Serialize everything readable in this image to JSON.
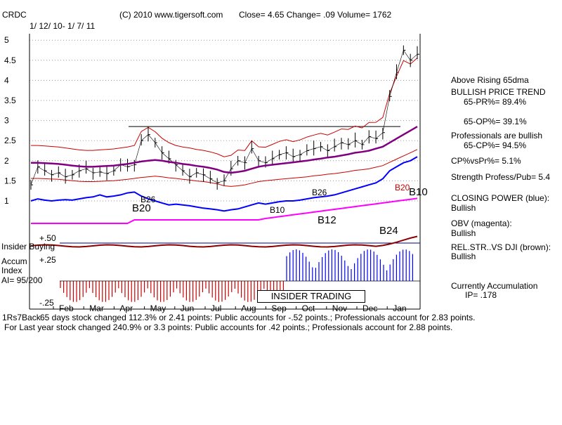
{
  "header": {
    "symbol": "CRDC",
    "copyright": "(C) 2010 www.tigersoft.com",
    "stats": "Close=  4.65  Change= .09 Volume= 1762",
    "date_range": "1/ 12/ 10- 1/ 7/ 11"
  },
  "colors": {
    "price": "#000000",
    "closing_power": "#0000ff",
    "obv": "#ff00ff",
    "rel_strength": "#8b0000",
    "ma65": "#800080",
    "bands": "#cc0000",
    "accum_positive": "#0000ff",
    "accum_negative": "#cc0000",
    "insider_line": "#000080"
  },
  "right_panel": {
    "line1": "Above Rising 65dma",
    "line2": "BULLISH PRICE TREND",
    "line3": "65-PR%= 89.4%",
    "line4": "65-OP%= 39.1%",
    "line5": "Professionals are bullish",
    "line6": "65-CP%= 94.5%",
    "line7": "CP%vsPr%=  5.1%",
    "line8": "Strength Profess/Pub= 5.4",
    "line9": "CLOSING POWER (blue):",
    "line10": "Bullish",
    "line11": "OBV (magenta):",
    "line12": "Bullish",
    "line13": "REL.STR..VS DJI (brown):",
    "line14": "Bullish",
    "line15": "Currently Accumulation",
    "line16": "IP=  .178"
  },
  "left_panel": {
    "insider_buying": "Insider Buying",
    "accum_line1": "Accum",
    "accum_line2": "Index",
    "ai": "AI= 95/200",
    "plus50": "+.50",
    "plus25": "+.25",
    "minus25": "-.25"
  },
  "signals": {
    "b20": "B20",
    "b26a": "B26",
    "b26b": "B26",
    "b12": "B12",
    "b24": "B24",
    "b10": "B10",
    "b20b": "B20",
    "b10b": "B10"
  },
  "insider_label": "INSIDER TRADING",
  "footer": {
    "line1a": "1Rs7Back",
    "line1b": "65 days stock changed  112.3% or  2.41 points:  Public accounts for -.52 points.;  Professionals account for  2.83 points.",
    "line2": "For Last year stock changed  240.9% or  3.3 points:  Public accounts for  .42 points.;  Professionals account for  2.88 points."
  },
  "chart_data": {
    "type": "line",
    "y_ticks": [
      "5",
      "4.5",
      "4",
      "3.5",
      "3",
      "2.5",
      "2",
      "1.5",
      "1"
    ],
    "y_values": [
      5,
      4.5,
      4,
      3.5,
      3,
      2.5,
      2,
      1.5,
      1
    ],
    "x_ticks": [
      "Feb",
      "Mar",
      "Apr",
      "May",
      "Jun",
      "Jul",
      "Aug",
      "Sep",
      "Oct",
      "Nov",
      "Dec",
      "Jan"
    ],
    "ylim": [
      1,
      5
    ],
    "grid": true,
    "price_close": [
      1.4,
      1.85,
      1.75,
      1.65,
      1.7,
      1.6,
      1.65,
      1.75,
      1.8,
      1.7,
      1.72,
      1.68,
      1.75,
      1.9,
      1.85,
      1.9,
      2.5,
      2.65,
      2.45,
      2.2,
      2.05,
      1.9,
      1.75,
      1.6,
      1.7,
      1.65,
      1.55,
      1.45,
      1.5,
      1.8,
      2.0,
      1.95,
      2.3,
      2.0,
      1.95,
      2.05,
      2.15,
      2.2,
      2.1,
      2.15,
      2.25,
      2.3,
      2.35,
      2.25,
      2.35,
      2.45,
      2.4,
      2.5,
      2.4,
      2.6,
      2.55,
      2.7,
      3.6,
      4.2,
      4.75,
      4.5,
      4.65
    ],
    "ma65": [
      1.95,
      1.95,
      1.94,
      1.93,
      1.92,
      1.9,
      1.88,
      1.86,
      1.85,
      1.85,
      1.86,
      1.87,
      1.88,
      1.9,
      1.92,
      1.95,
      1.98,
      2.0,
      2.02,
      2.0,
      1.97,
      1.95,
      1.92,
      1.9,
      1.87,
      1.85,
      1.82,
      1.78,
      1.72,
      1.7,
      1.72,
      1.75,
      1.8,
      1.85,
      1.88,
      1.9,
      1.92,
      1.94,
      1.96,
      1.98,
      2.0,
      2.03,
      2.05,
      2.08,
      2.1,
      2.13,
      2.16,
      2.2,
      2.22,
      2.25,
      2.3,
      2.35,
      2.45,
      2.55,
      2.65,
      2.75,
      2.85
    ],
    "closing_power": [
      1.0,
      1.05,
      1.02,
      1.0,
      1.02,
      1.03,
      1.02,
      1.05,
      1.08,
      1.1,
      1.15,
      1.1,
      1.12,
      1.15,
      1.2,
      1.22,
      1.12,
      1.05,
      1.0,
      0.95,
      0.9,
      0.92,
      0.9,
      0.88,
      0.85,
      0.82,
      0.8,
      0.78,
      0.75,
      0.78,
      0.8,
      0.85,
      0.9,
      0.95,
      0.92,
      0.95,
      0.98,
      1.0,
      1.0,
      1.02,
      1.05,
      1.08,
      1.1,
      1.12,
      1.15,
      1.2,
      1.25,
      1.3,
      1.35,
      1.4,
      1.45,
      1.55,
      1.75,
      1.85,
      1.95,
      2.0,
      2.1
    ]
  }
}
